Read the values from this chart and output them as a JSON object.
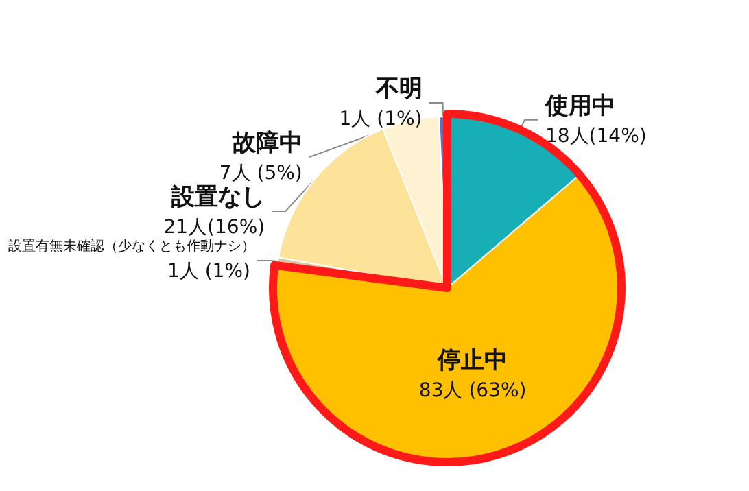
{
  "chart_data": {
    "type": "pie",
    "categories": [
      "使用中",
      "停止中",
      "設置有無未確認（少なくとも作動ナシ）",
      "設置なし",
      "故障中",
      "不明"
    ],
    "values": [
      18,
      83,
      1,
      21,
      7,
      1
    ],
    "colors": [
      "#17aeb6",
      "#ffc000",
      "#d9c9a0",
      "#fde39a",
      "#fff2d2",
      "#5a72c8"
    ],
    "value_labels": [
      "18人(14%)",
      "83人 (63%)",
      "1人 (1%)",
      "21人(16%)",
      "7人 (5%)",
      "1人 (1%)"
    ],
    "legend": false
  }
}
